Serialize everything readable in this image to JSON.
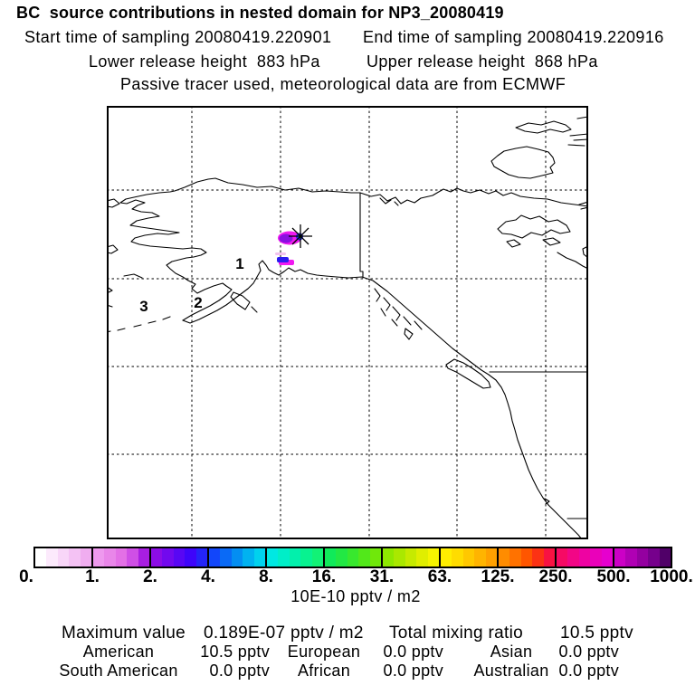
{
  "header": {
    "title": "BC  source contributions in nested domain for NP3_20080419",
    "start_time": "Start time of sampling 20080419.220901",
    "end_time": "End time of sampling 20080419.220916",
    "lower_release": "Lower release height  883 hPa",
    "upper_release": "Upper release height  868 hPa",
    "tracer_info": "Passive tracer used, meteorological data are from ECMWF"
  },
  "map": {
    "region_labels": [
      {
        "text": "1"
      },
      {
        "text": "2"
      },
      {
        "text": "3"
      }
    ]
  },
  "colorbar": {
    "unit_label": "10E-10 pptv / m2",
    "ticks": [
      "0.",
      "1.",
      "2.",
      "4.",
      "8.",
      "16.",
      "31.",
      "63.",
      "125.",
      "250.",
      "500.",
      "1000."
    ],
    "segments": [
      [
        "#ffffff",
        "#fceafc",
        "#f8d6f8",
        "#f4c2f4",
        "#f0adf0"
      ],
      [
        "#ee99ee",
        "#e986e9",
        "#e370e6",
        "#cf4fe6",
        "#a81ee2"
      ],
      [
        "#8c0ce6",
        "#7209ee",
        "#5807f4",
        "#3e05fa",
        "#2424f8"
      ],
      [
        "#1246fa",
        "#0a6af6",
        "#048ef2",
        "#01b2f0",
        "#00d2ee"
      ],
      [
        "#00e8e2",
        "#00eec8",
        "#02f0ac",
        "#08f290",
        "#12f276"
      ],
      [
        "#10ea5a",
        "#22e844",
        "#38e82e",
        "#52e81a",
        "#70e80a"
      ],
      [
        "#8ee800",
        "#aae800",
        "#c6ea00",
        "#e0ee00",
        "#f6f400"
      ],
      [
        "#ffee00",
        "#ffdc00",
        "#ffc800",
        "#ffb400",
        "#ffa000"
      ],
      [
        "#ff8c00",
        "#ff7200",
        "#ff5600",
        "#fc3214",
        "#f81242"
      ],
      [
        "#f60a64",
        "#f20686",
        "#ee03a2",
        "#ea01ba",
        "#e600ce"
      ],
      [
        "#cc00c6",
        "#b000b4",
        "#9400a0",
        "#76008c",
        "#500068"
      ]
    ]
  },
  "stats": {
    "max_label": "Maximum value",
    "max_value": "0.189E-07 pptv / m2",
    "total_label": "Total mixing ratio",
    "total_value": "10.5 pptv",
    "regions": [
      [
        {
          "label": "American",
          "value": "10.5 pptv"
        },
        {
          "label": "European",
          "value": "0.0 pptv"
        },
        {
          "label": "Asian",
          "value": "0.0 pptv"
        }
      ],
      [
        {
          "label": "South American",
          "value": "0.0 pptv"
        },
        {
          "label": "African",
          "value": "0.0 pptv"
        },
        {
          "label": "Australian",
          "value": "0.0 pptv"
        }
      ]
    ]
  },
  "chart_data": {
    "type": "heatmap",
    "title": "BC  source contributions in nested domain for NP3_20080419",
    "subtitle": [
      "Start time of sampling 20080419.220901",
      "End time of sampling 20080419.220916",
      "Lower release height  883 hPa",
      "Upper release height  868 hPa",
      "Passive tracer used, meteorological data are from ECMWF"
    ],
    "colorbar_scale": [
      0,
      1,
      2,
      4,
      8,
      16,
      31,
      63,
      125,
      250,
      500,
      1000
    ],
    "colorbar_unit": "10E-10 pptv / m2",
    "maximum_value": "0.189E-07 pptv / m2",
    "total_mixing_ratio_pptv": 10.5,
    "contributions_pptv": {
      "American": 10.5,
      "European": 0.0,
      "Asian": 0.0,
      "South American": 0.0,
      "African": 0.0,
      "Australian": 0.0
    },
    "map_region_numbers": [
      "1",
      "2",
      "3"
    ],
    "legend_position": "bottom",
    "notes": "Geographic map of Alaska / NW North America with source-contribution plume near release marker (asterisk); grid dashed; plume cells span white-magenta-purple-blue-green scale values."
  }
}
